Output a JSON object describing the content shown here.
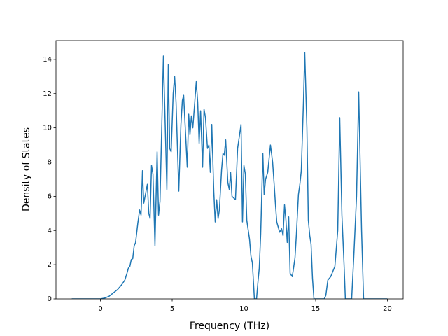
{
  "chart_data": {
    "type": "line",
    "x_label": "Frequency (THz)",
    "y_label": "Density of States",
    "xlim": [
      -3.1,
      21.1
    ],
    "ylim": [
      0,
      15.1
    ],
    "xticks": [
      0,
      5,
      10,
      15,
      20
    ],
    "yticks": [
      0,
      2,
      4,
      6,
      8,
      10,
      12,
      14
    ],
    "series": [
      {
        "color": "#1f77b4",
        "x": [
          -2,
          -1,
          0,
          0.3,
          0.6,
          0.9,
          1.2,
          1.5,
          1.7,
          1.85,
          1.95,
          2.05,
          2.15,
          2.25,
          2.35,
          2.45,
          2.6,
          2.73,
          2.83,
          2.93,
          3.02,
          3.27,
          3.37,
          3.46,
          3.56,
          3.66,
          3.8,
          3.95,
          4.05,
          4.15,
          4.39,
          4.63,
          4.73,
          4.83,
          4.93,
          5.07,
          5.17,
          5.27,
          5.46,
          5.61,
          5.71,
          5.8,
          6.05,
          6.15,
          6.24,
          6.34,
          6.44,
          6.68,
          6.78,
          6.88,
          6.98,
          7.12,
          7.22,
          7.32,
          7.46,
          7.56,
          7.66,
          7.76,
          7.9,
          8.0,
          8.1,
          8.2,
          8.29,
          8.44,
          8.54,
          8.63,
          8.73,
          8.88,
          8.98,
          9.07,
          9.17,
          9.41,
          9.56,
          9.8,
          9.9,
          10.0,
          10.1,
          10.2,
          10.39,
          10.49,
          10.59,
          10.73,
          10.88,
          10.98,
          11.07,
          11.17,
          11.32,
          11.41,
          11.51,
          11.66,
          11.85,
          12.0,
          12.1,
          12.2,
          12.29,
          12.39,
          12.49,
          12.63,
          12.73,
          12.83,
          12.93,
          13.02,
          13.12,
          13.22,
          13.37,
          13.46,
          13.56,
          13.66,
          13.8,
          13.9,
          14.0,
          14.15,
          14.24,
          14.39,
          14.49,
          14.59,
          14.68,
          14.78,
          14.88,
          15.6,
          15.71,
          15.85,
          16.05,
          16.34,
          16.54,
          16.68,
          16.83,
          16.98,
          17.07,
          17.51,
          17.66,
          17.85,
          18.0,
          18.2,
          18.34,
          20
        ],
        "values": [
          0,
          0,
          0,
          0.05,
          0.15,
          0.35,
          0.55,
          0.85,
          1.1,
          1.5,
          1.8,
          1.9,
          2.3,
          2.35,
          3.1,
          3.3,
          4.4,
          5.2,
          4.9,
          7.5,
          5.6,
          6.7,
          5.0,
          4.7,
          7.8,
          7.3,
          3.1,
          8.6,
          4.9,
          5.7,
          14.2,
          6.4,
          13.7,
          8.8,
          8.6,
          12.0,
          13.0,
          11.5,
          6.3,
          10.2,
          11.6,
          11.9,
          7.7,
          10.8,
          9.6,
          10.7,
          10.0,
          12.7,
          11.5,
          9.1,
          11.0,
          7.7,
          11.1,
          10.6,
          8.8,
          9.0,
          7.4,
          10.2,
          6.3,
          4.5,
          5.8,
          4.7,
          5.2,
          7.5,
          8.5,
          8.4,
          9.3,
          6.8,
          6.4,
          7.4,
          6.0,
          5.8,
          8.8,
          10.2,
          4.5,
          7.8,
          7.3,
          4.6,
          3.5,
          2.5,
          2.1,
          0,
          0,
          1.0,
          1.8,
          3.8,
          8.5,
          6.1,
          7.0,
          7.4,
          9.0,
          8.0,
          6.8,
          5.5,
          4.5,
          4.2,
          3.9,
          4.1,
          3.7,
          5.5,
          4.6,
          3.3,
          4.8,
          1.5,
          1.3,
          1.8,
          2.4,
          3.8,
          6.1,
          6.7,
          7.5,
          11.5,
          14.4,
          10.0,
          4.6,
          3.7,
          3.2,
          1.2,
          0,
          0,
          0.2,
          1.1,
          1.3,
          1.9,
          4.0,
          10.6,
          4.9,
          2.0,
          0,
          0,
          2.5,
          6.0,
          12.1,
          4.0,
          0,
          0
        ]
      }
    ]
  }
}
